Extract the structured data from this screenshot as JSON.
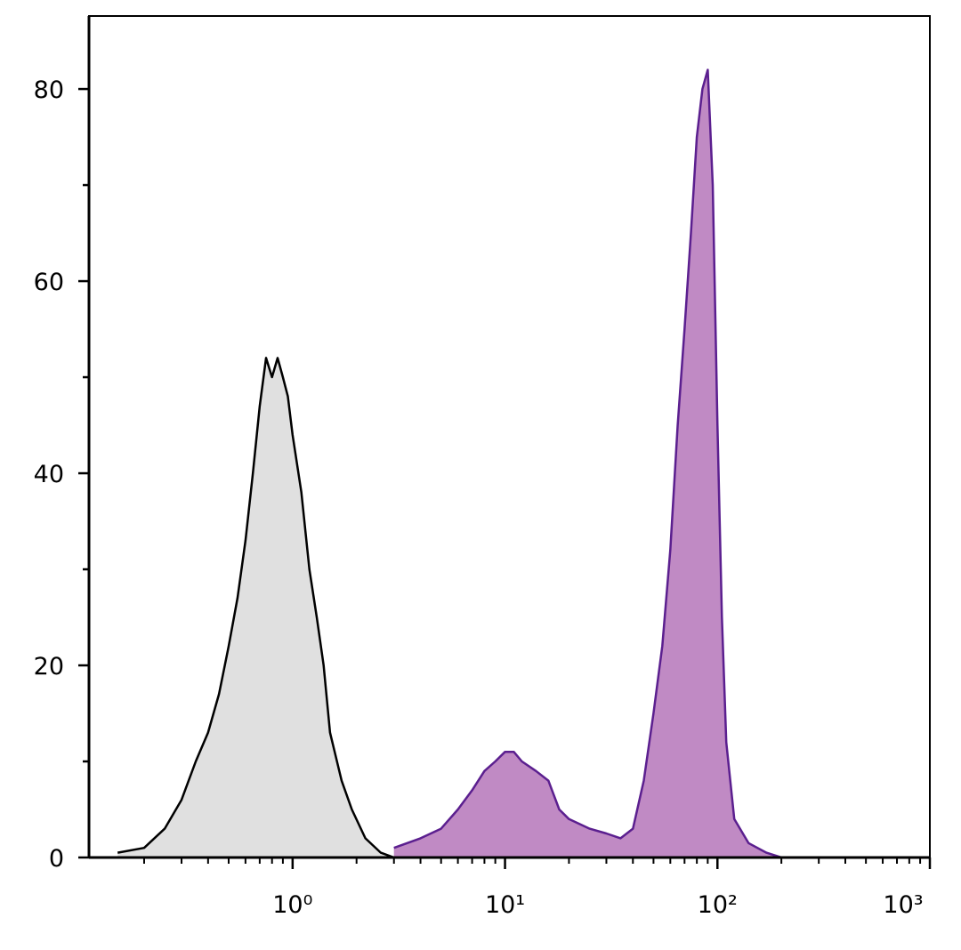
{
  "chart_data": {
    "type": "line",
    "log_x": true,
    "xlim": [
      0.11,
      1000
    ],
    "ylim": [
      0,
      87.6
    ],
    "xticks": [
      {
        "value": 1,
        "label": "10⁰"
      },
      {
        "value": 10,
        "label": "10¹"
      },
      {
        "value": 100,
        "label": "10²"
      },
      {
        "value": 1000,
        "label": "10³"
      }
    ],
    "xminorticks": [
      0.2,
      0.3,
      0.4,
      0.5,
      0.6,
      0.7,
      0.8,
      0.9,
      2,
      3,
      4,
      5,
      6,
      7,
      8,
      9,
      20,
      30,
      40,
      50,
      60,
      70,
      80,
      90,
      200,
      300,
      400,
      500,
      600,
      700,
      800,
      900
    ],
    "yticks": [
      0,
      20,
      40,
      60,
      80
    ],
    "yminorticks": [
      10,
      30,
      50,
      70
    ],
    "series": [
      {
        "color": "#000000",
        "fill": "#e0e0e0",
        "x": [
          0.15,
          0.2,
          0.25,
          0.3,
          0.35,
          0.4,
          0.45,
          0.5,
          0.55,
          0.6,
          0.65,
          0.7,
          0.75,
          0.8,
          0.85,
          0.9,
          0.95,
          1.0,
          1.1,
          1.2,
          1.3,
          1.4,
          1.5,
          1.7,
          1.9,
          2.2,
          2.6,
          3
        ],
        "values": [
          0.5,
          1,
          3,
          6,
          10,
          13,
          17,
          22,
          27,
          33,
          40,
          47,
          52,
          50,
          52,
          50,
          48,
          44,
          38,
          30,
          25,
          20,
          13,
          8,
          5,
          2,
          0.5,
          0
        ]
      },
      {
        "color": "#5b1f8f",
        "fill": "#c08ac4",
        "x": [
          3,
          4,
          5,
          6,
          7,
          8,
          9,
          10,
          11,
          12,
          14,
          16,
          18,
          20,
          25,
          30,
          35,
          40,
          45,
          50,
          55,
          60,
          65,
          70,
          75,
          80,
          85,
          90,
          95,
          100,
          105,
          110,
          120,
          140,
          170,
          200
        ],
        "values": [
          1,
          2,
          3,
          5,
          7,
          9,
          10,
          11,
          11,
          10,
          9,
          8,
          5,
          4,
          3,
          2.5,
          2,
          3,
          8,
          15,
          22,
          32,
          45,
          55,
          65,
          75,
          80,
          82,
          70,
          45,
          25,
          12,
          4,
          1.5,
          0.5,
          0
        ]
      }
    ]
  }
}
